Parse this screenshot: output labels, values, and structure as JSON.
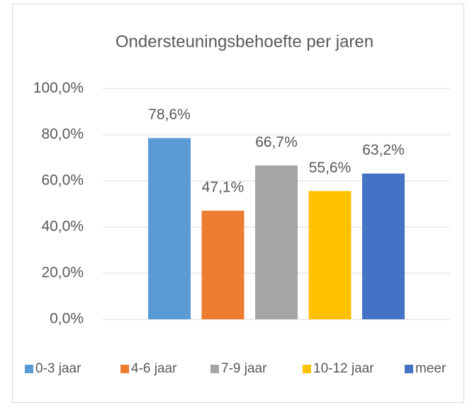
{
  "chart_data": {
    "type": "bar",
    "title": "Ondersteuningsbehoefte per jaren",
    "categories": [
      "0-3 jaar",
      "4-6 jaar",
      "7-9 jaar",
      "10-12 jaar",
      "meer"
    ],
    "values": [
      78.6,
      47.1,
      66.7,
      55.6,
      63.2
    ],
    "value_labels": [
      "78,6%",
      "47,1%",
      "66,7%",
      "55,6%",
      "63,2%"
    ],
    "colors": [
      "#5b9bd5",
      "#ed7d31",
      "#a5a5a5",
      "#ffc000",
      "#4472c4"
    ],
    "ylim": [
      0,
      100
    ],
    "yticks": [
      {
        "value": 0,
        "label": "0,0%"
      },
      {
        "value": 20,
        "label": "20,0%"
      },
      {
        "value": 40,
        "label": "40,0%"
      },
      {
        "value": 60,
        "label": "60,0%"
      },
      {
        "value": 80,
        "label": "80,0%"
      },
      {
        "value": 100,
        "label": "100,0%"
      }
    ],
    "grid": true,
    "legend": "bottom"
  }
}
